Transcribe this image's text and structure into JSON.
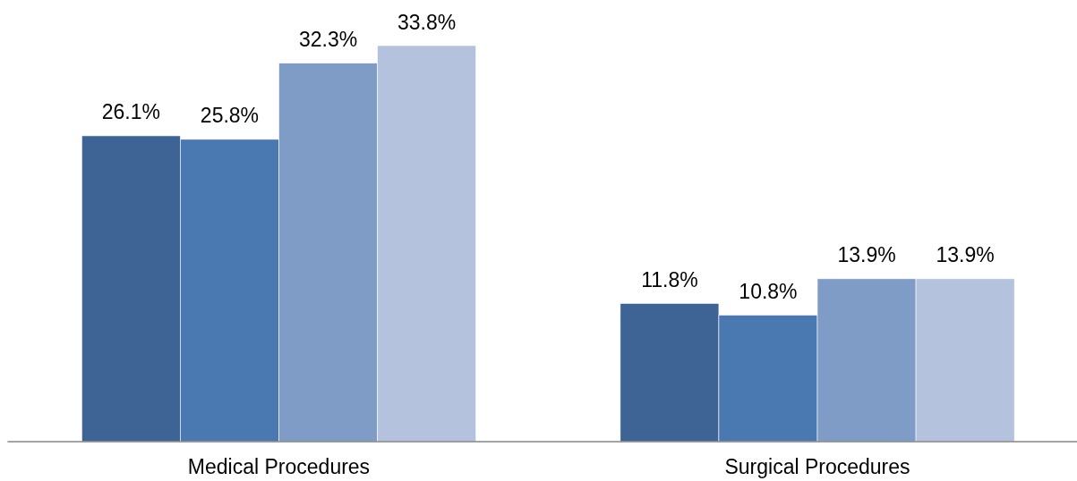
{
  "chart_data": {
    "type": "bar",
    "categories": [
      "Medical Procedures",
      "Surgical Procedures"
    ],
    "series": [
      {
        "color": "#3d6494",
        "values": [
          26.1,
          11.8
        ],
        "value_labels": [
          "26.1%",
          "11.8%"
        ]
      },
      {
        "color": "#4a78b0",
        "values": [
          25.8,
          10.8
        ],
        "value_labels": [
          "25.8%",
          "10.8%"
        ]
      },
      {
        "color": "#7f9cc7",
        "values": [
          32.3,
          13.9
        ],
        "value_labels": [
          "32.3%",
          "13.9%"
        ]
      },
      {
        "color": "#b4c2de",
        "values": [
          33.8,
          13.9
        ],
        "value_labels": [
          "33.8%",
          "13.9%"
        ]
      }
    ]
  }
}
